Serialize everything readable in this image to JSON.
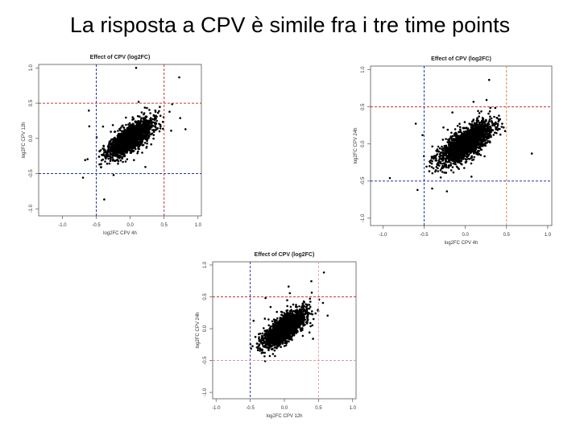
{
  "slide": {
    "title": "La risposta a CPV è simile fra i tre time points"
  },
  "chart_data": [
    {
      "type": "scatter",
      "title": "Effect of CPV (log2FC)",
      "xlabel": "log2FC CPV 4h",
      "ylabel": "log2FC CPV 12h",
      "xlim": [
        -1.35,
        1.05
      ],
      "ylim": [
        -1.1,
        1.05
      ],
      "xticks": [
        "-1.0",
        "-0.5",
        "0.0",
        "0.5",
        "1.0"
      ],
      "yticks": [
        "-1.0",
        "-0.5",
        "0.0",
        "0.5",
        "1.0"
      ],
      "grid": false,
      "reference_lines": {
        "vertical": [
          {
            "x": -0.5,
            "color": "#2233aa"
          },
          {
            "x": 0.5,
            "color": "#cc3333"
          }
        ],
        "horizontal": [
          {
            "y": -0.5,
            "color": "#2233aa"
          },
          {
            "y": 0.5,
            "color": "#cc3333"
          }
        ]
      },
      "cloud": {
        "center": [
          0.0,
          0.0
        ],
        "sd_x": 0.16,
        "sd_y": 0.13,
        "correlation": 0.72,
        "n_points": 1800,
        "tail_points": 35
      }
    },
    {
      "type": "scatter",
      "title": "Effect of CPV (log2FC)",
      "xlabel": "log2FC CPV 4h",
      "ylabel": "log2FC CPV 24h",
      "xlim": [
        -1.15,
        1.05
      ],
      "ylim": [
        -1.1,
        1.05
      ],
      "xticks": [
        "-1.0",
        "-0.5",
        "0.0",
        "0.5",
        "1.0"
      ],
      "yticks": [
        "-1.0",
        "-0.5",
        "0.0",
        "0.5",
        "1.0"
      ],
      "grid": false,
      "reference_lines": {
        "vertical": [
          {
            "x": -0.5,
            "color": "#2233aa"
          },
          {
            "x": 0.5,
            "color": "#dd8855"
          }
        ],
        "horizontal": [
          {
            "y": -0.5,
            "color": "#2233aa"
          },
          {
            "y": 0.5,
            "color": "#cc3333"
          }
        ]
      },
      "cloud": {
        "center": [
          0.0,
          0.0
        ],
        "sd_x": 0.16,
        "sd_y": 0.14,
        "correlation": 0.72,
        "n_points": 1800,
        "tail_points": 35
      }
    },
    {
      "type": "scatter",
      "title": "Effect of CPV (log2FC)",
      "xlabel": "log2FC CPV 12h",
      "ylabel": "log2FC CPV 24h",
      "xlim": [
        -1.05,
        1.05
      ],
      "ylim": [
        -1.1,
        1.05
      ],
      "xticks": [
        "-1.0",
        "-0.5",
        "0.0",
        "0.5",
        "1.0"
      ],
      "yticks": [
        "-1.0",
        "-0.5",
        "0.0",
        "0.5",
        "1.0"
      ],
      "grid": false,
      "reference_lines": {
        "vertical": [
          {
            "x": -0.5,
            "color": "#2233aa"
          },
          {
            "x": 0.5,
            "color": "#ddaaaa"
          }
        ],
        "horizontal": [
          {
            "y": -0.5,
            "color": "#dd9999"
          },
          {
            "y": 0.5,
            "color": "#cc3333"
          }
        ]
      },
      "cloud": {
        "center": [
          0.0,
          0.0
        ],
        "sd_x": 0.15,
        "sd_y": 0.14,
        "correlation": 0.72,
        "n_points": 1800,
        "tail_points": 35
      }
    }
  ]
}
